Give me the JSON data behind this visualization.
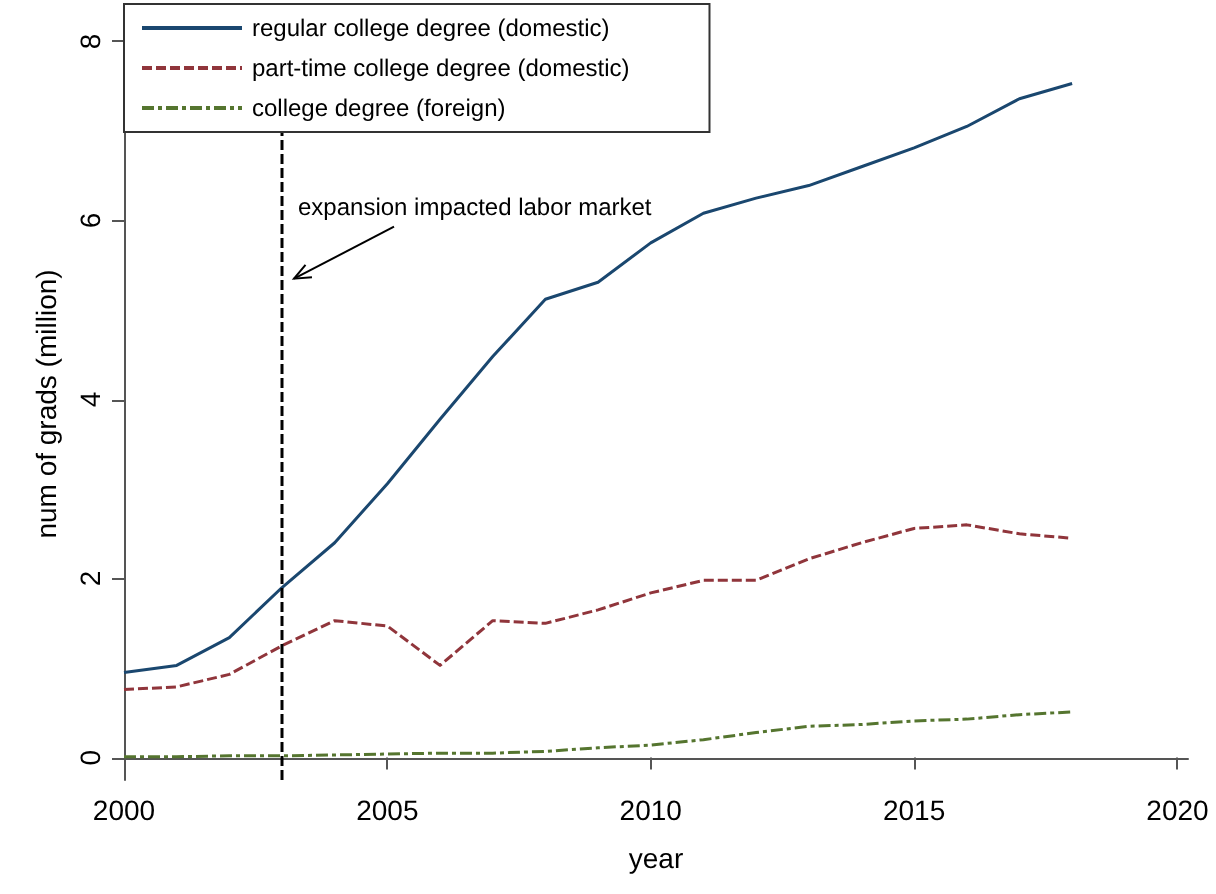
{
  "chart_data": {
    "type": "line",
    "xlabel": "year",
    "ylabel": "num of grads (million)",
    "x": [
      2000,
      2001,
      2002,
      2003,
      2004,
      2005,
      2006,
      2007,
      2008,
      2009,
      2010,
      2011,
      2012,
      2013,
      2014,
      2015,
      2016,
      2017,
      2018
    ],
    "series": [
      {
        "name": "regular college degree (domestic)",
        "color": "#1a476f",
        "line_style": "solid",
        "values": [
          0.95,
          1.03,
          1.34,
          1.9,
          2.4,
          3.06,
          3.78,
          4.48,
          5.12,
          5.31,
          5.75,
          6.08,
          6.25,
          6.39,
          6.6,
          6.81,
          7.05,
          7.36,
          7.53
        ]
      },
      {
        "name": "part-time college degree (domestic)",
        "color": "#90353b",
        "line_style": "dashed",
        "values": [
          0.76,
          0.79,
          0.93,
          1.25,
          1.53,
          1.47,
          1.03,
          1.53,
          1.5,
          1.65,
          1.84,
          1.98,
          1.98,
          2.22,
          2.4,
          2.56,
          2.6,
          2.5,
          2.45
        ]
      },
      {
        "name": "college degree (foreign)",
        "color": "#55752f",
        "line_style": "dashdot",
        "values": [
          0.01,
          0.01,
          0.02,
          0.02,
          0.03,
          0.04,
          0.05,
          0.05,
          0.07,
          0.11,
          0.14,
          0.2,
          0.28,
          0.35,
          0.37,
          0.41,
          0.43,
          0.48,
          0.51
        ]
      }
    ],
    "xlim": [
      2000,
      2020.2
    ],
    "xticks": [
      2000,
      2005,
      2010,
      2015,
      2020
    ],
    "ylim": [
      -0.25,
      8.15
    ],
    "yticks": [
      0,
      2,
      4,
      6,
      8
    ],
    "ref_lines": [
      {
        "axis": "x",
        "value": 2003,
        "color": "#000000",
        "line_style": "dashed"
      }
    ],
    "annotations": [
      {
        "text": "expansion impacted labor market",
        "x": 2003,
        "y": 5.35
      }
    ],
    "grid": false,
    "legend": "top left",
    "marker": "none"
  }
}
